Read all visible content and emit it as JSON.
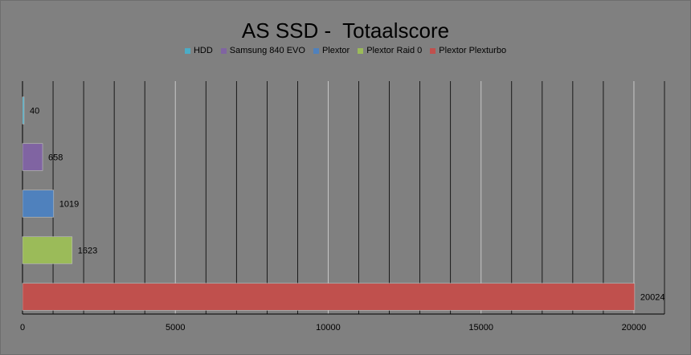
{
  "chart_data": {
    "type": "bar",
    "orientation": "horizontal",
    "title": "AS SSD -  Totaalscore",
    "xlabel": "",
    "ylabel": "",
    "xlim": [
      0,
      21000
    ],
    "x_ticks": [
      0,
      5000,
      10000,
      15000,
      20000
    ],
    "grid": true,
    "legend_placement": "top",
    "series": [
      {
        "name": "HDD",
        "value": 40,
        "color": "#4bacc6"
      },
      {
        "name": "Samsung 840 EVO",
        "value": 658,
        "color": "#8064a2"
      },
      {
        "name": "Plextor",
        "value": 1019,
        "color": "#4f81bd"
      },
      {
        "name": "Plextor Raid 0",
        "value": 1623,
        "color": "#9bbb59"
      },
      {
        "name": "Plextor Plexturbo",
        "value": 20024,
        "color": "#c0504d"
      }
    ]
  }
}
